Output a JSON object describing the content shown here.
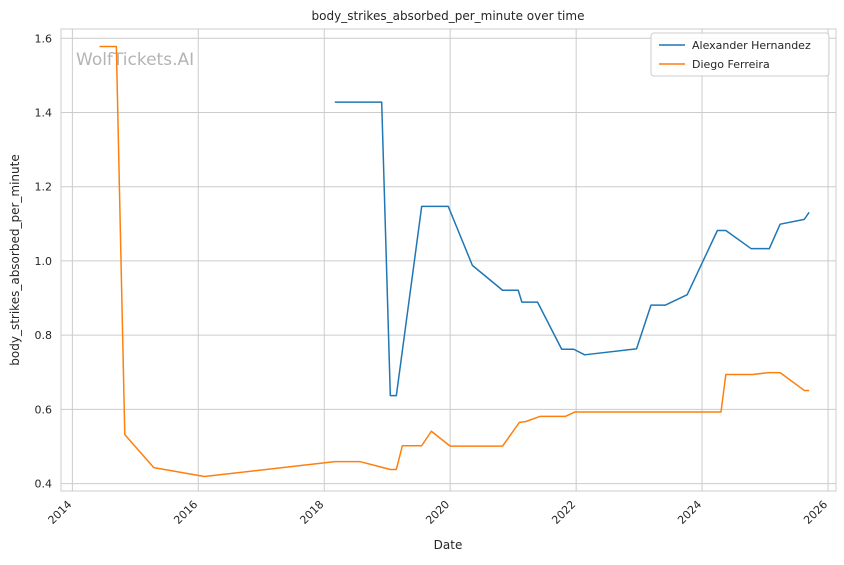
{
  "chart_data": {
    "type": "line",
    "title": "body_strikes_absorbed_per_minute over time",
    "xlabel": "Date",
    "ylabel": "body_strikes_absorbed_per_minute",
    "watermark": "WolfTickets.AI",
    "xlim": [
      "2013-10-27",
      "2026-02-16"
    ],
    "ylim": [
      0.38,
      1.625
    ],
    "x_ticks": [
      "2014",
      "2016",
      "2018",
      "2020",
      "2022",
      "2024",
      "2026"
    ],
    "y_ticks": [
      "0.4",
      "0.6",
      "0.8",
      "1.0",
      "1.2",
      "1.4",
      "1.6"
    ],
    "grid": true,
    "legend_position": "top-right",
    "series": [
      {
        "name": "Alexander Hernandez",
        "color": "#1f77b4",
        "x": [
          "2018-03-03",
          "2018-11-30",
          "2019-01-19",
          "2019-02-23",
          "2019-07-20",
          "2019-12-21",
          "2020-05-09",
          "2020-10-31",
          "2021-01-30",
          "2021-02-20",
          "2021-05-22",
          "2021-10-09",
          "2021-12-18",
          "2022-02-19",
          "2022-12-17",
          "2023-03-11",
          "2023-06-03",
          "2023-10-07",
          "2024-03-30",
          "2024-05-18",
          "2024-10-12",
          "2025-01-25",
          "2025-03-29",
          "2025-08-16",
          "2025-09-13"
        ],
        "y": [
          1.428,
          1.428,
          0.637,
          0.637,
          1.147,
          1.147,
          0.988,
          0.921,
          0.921,
          0.889,
          0.889,
          0.762,
          0.762,
          0.747,
          0.763,
          0.881,
          0.881,
          0.909,
          1.082,
          1.082,
          1.033,
          1.033,
          1.099,
          1.112,
          1.131
        ]
      },
      {
        "name": "Diego Ferreira",
        "color": "#ff7f0e",
        "x": [
          "2014-06-07",
          "2014-09-13",
          "2014-11-01",
          "2015-04-18",
          "2016-02-06",
          "2018-03-03",
          "2018-07-28",
          "2019-01-19",
          "2019-02-23",
          "2019-03-30",
          "2019-07-20",
          "2019-09-14",
          "2020-01-01",
          "2020-10-31",
          "2021-02-06",
          "2021-03-13",
          "2021-06-05",
          "2021-10-30",
          "2021-12-25",
          "2024-04-20",
          "2024-05-18",
          "2024-10-19",
          "2025-01-25",
          "2025-03-29",
          "2025-08-16",
          "2025-09-13"
        ],
        "y": [
          1.578,
          1.578,
          0.532,
          0.443,
          0.419,
          0.459,
          0.459,
          0.438,
          0.438,
          0.502,
          0.502,
          0.541,
          0.501,
          0.501,
          0.565,
          0.567,
          0.581,
          0.581,
          0.593,
          0.593,
          0.694,
          0.694,
          0.699,
          0.699,
          0.651,
          0.651
        ]
      }
    ]
  }
}
